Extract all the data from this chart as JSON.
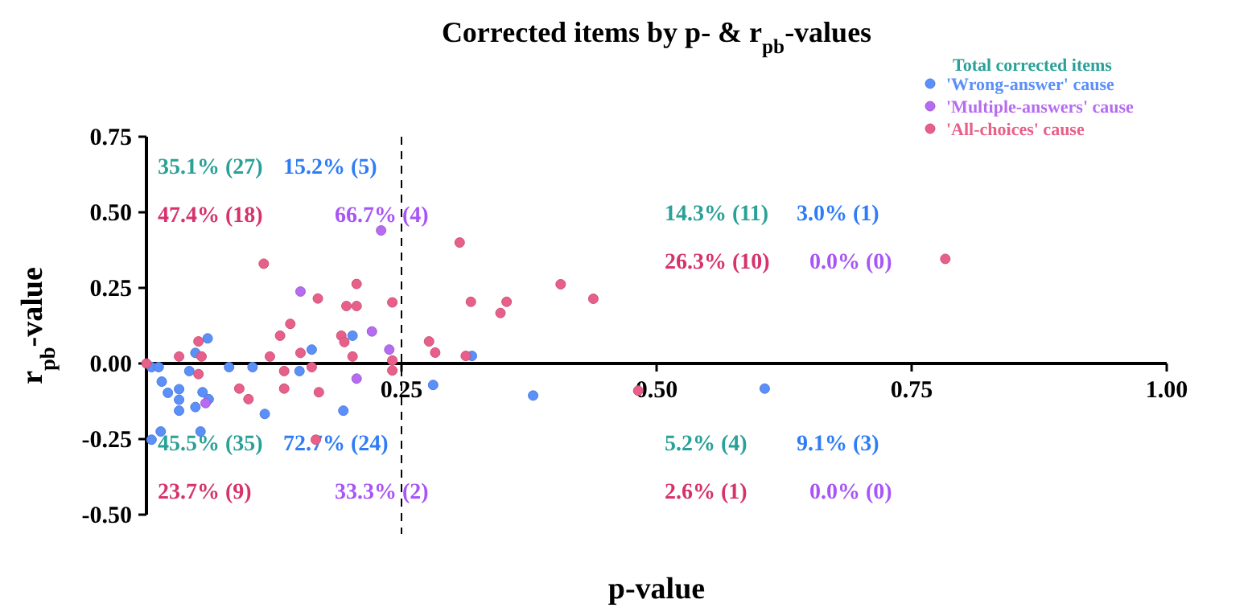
{
  "chart_data": {
    "type": "scatter",
    "title": "Corrected items by p- & r$_{pb}$-values",
    "xlabel": "p-value",
    "ylabel": "r$_{pb}$-value",
    "legend_title": "Total corrected items",
    "legend": "top right",
    "marker": "circle",
    "grid": false,
    "xlim": [
      0,
      1
    ],
    "ylim": [
      -0.5,
      0.75
    ],
    "xticks": [
      {
        "value": 0.25,
        "label": "0.25"
      },
      {
        "value": 0.5,
        "label": "0.50"
      },
      {
        "value": 0.75,
        "label": "0.75"
      },
      {
        "value": 1,
        "label": "1.00"
      }
    ],
    "yticks": [
      {
        "value": -0.5,
        "label": "-0.50"
      },
      {
        "value": -0.25,
        "label": "-0.25"
      },
      {
        "value": 0,
        "label": "0.00"
      },
      {
        "value": 0.25,
        "label": "0.25"
      },
      {
        "value": 0.5,
        "label": "0.50"
      },
      {
        "value": 0.75,
        "label": "0.75"
      }
    ],
    "ref_lines": [
      {
        "axis": "x",
        "value": 0.25,
        "line_style": "dashed",
        "color": "#000000"
      }
    ],
    "series": [
      {
        "name": "'Wrong-answer' cause",
        "color": "#5b8ff9",
        "x": [
          0.005,
          0.012,
          0.015,
          0.021,
          0.032,
          0.032,
          0.032,
          0.014,
          0.005,
          0.042,
          0.048,
          0.06,
          0.048,
          0.055,
          0.061,
          0.053,
          0.081,
          0.104,
          0.116,
          0.15,
          0.162,
          0.193,
          0.202,
          0.319,
          0.281,
          0.379,
          0.606
        ],
        "values": [
          -0.012,
          -0.012,
          -0.06,
          -0.097,
          -0.085,
          -0.12,
          -0.156,
          -0.225,
          -0.252,
          -0.025,
          0.035,
          0.083,
          -0.144,
          -0.095,
          -0.118,
          -0.225,
          -0.012,
          -0.012,
          -0.167,
          -0.025,
          0.046,
          -0.156,
          0.092,
          0.025,
          -0.071,
          -0.106,
          -0.083
        ]
      },
      {
        "name": "'Multiple-answers' cause",
        "color": "#b56cf0",
        "x": [
          0.151,
          0.058,
          0.221,
          0.238,
          0.206,
          0.23
        ],
        "values": [
          0.238,
          -0.131,
          0.106,
          0.046,
          -0.05,
          0.44
        ]
      },
      {
        "name": "'All-choices' cause",
        "color": "#e8608a",
        "x": [
          0,
          0.115,
          0.032,
          0.051,
          0.054,
          0.051,
          0.091,
          0.1,
          0.121,
          0.131,
          0.141,
          0.135,
          0.135,
          0.151,
          0.168,
          0.169,
          0.166,
          0.162,
          0.191,
          0.194,
          0.196,
          0.206,
          0.206,
          0.202,
          0.241,
          0.241,
          0.241,
          0.307,
          0.318,
          0.353,
          0.347,
          0.406,
          0.438,
          0.277,
          0.283,
          0.313,
          0.783,
          0.482
        ],
        "values": [
          0,
          0.33,
          0.023,
          0.073,
          0.023,
          -0.035,
          -0.083,
          -0.118,
          0.023,
          0.092,
          0.131,
          -0.025,
          -0.083,
          0.035,
          0.215,
          -0.095,
          -0.252,
          -0.012,
          0.092,
          0.071,
          0.19,
          0.19,
          0.263,
          0.023,
          0.202,
          0.01,
          -0.023,
          0.4,
          0.204,
          0.204,
          0.167,
          0.262,
          0.214,
          0.073,
          0.036,
          0.025,
          0.346,
          -0.09
        ]
      }
    ],
    "annotations": [
      "35.1% (27)",
      "15.2% (5)",
      "47.4% (18)",
      "66.7% (4)",
      "14.3% (11)",
      "3.0% (1)",
      "26.3% (10)",
      "0.0% (0)",
      "45.5% (35)",
      "72.7% (24)",
      "23.7% (9)",
      "33.3% (2)",
      "5.2% (4)",
      "9.1% (3)",
      "2.6% (1)",
      "0.0% (0)"
    ]
  }
}
